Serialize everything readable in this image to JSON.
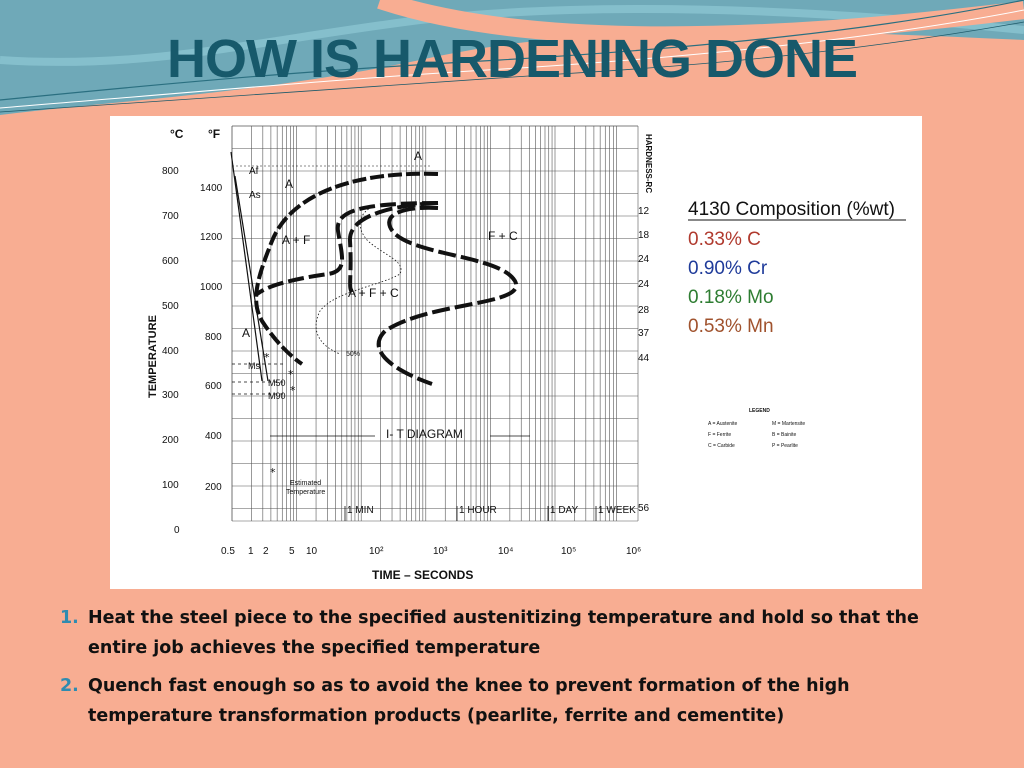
{
  "slide": {
    "title": "HOW IS HARDENING DONE"
  },
  "diagram": {
    "axes": {
      "celsius_unit": "°C",
      "fahrenheit_unit": "°F",
      "hardness_label": "HARDNESS-RC",
      "y_label": "TEMPERATURE",
      "x_label": "TIME – SECONDS",
      "celsius_ticks": [
        "800",
        "700",
        "600",
        "500",
        "400",
        "300",
        "200",
        "100",
        "0"
      ],
      "fahrenheit_ticks": [
        "1400",
        "1200",
        "1000",
        "800",
        "600",
        "400",
        "200"
      ],
      "hardness_ticks": [
        "12",
        "18",
        "24",
        "24",
        "28",
        "37",
        "44"
      ],
      "hardness_top": "56",
      "time_ticks": [
        "0.5",
        "1",
        "2",
        "5",
        "10",
        "10²",
        "10³",
        "10⁴",
        "10⁵",
        "10⁶"
      ]
    },
    "time_markers": [
      "1 MIN",
      "1 HOUR",
      "1 DAY",
      "1 WEEK"
    ],
    "region_labels": {
      "a_top": "A",
      "af": "Af",
      "as": "As",
      "a_curve": "A",
      "a_plus_f": "A + F",
      "f_plus_c": "F + C",
      "a_plus_f_plus_c": "A + F + C",
      "a_left": "A",
      "ms": "Ms",
      "m50": "M50",
      "m90": "M90",
      "fifty_percent": "50%",
      "diagram_name": "I- T  DIAGRAM",
      "estimated_line1": "Estimated",
      "estimated_line2": "Temperature"
    },
    "composition": {
      "title": "4130 Composition (%wt)",
      "elements": [
        {
          "text": "0.33% C",
          "color": "#b03a2e"
        },
        {
          "text": "0.90% Cr",
          "color": "#1f3b9a"
        },
        {
          "text": "0.18% Mo",
          "color": "#2e7d32"
        },
        {
          "text": "0.53% Mn",
          "color": "#a0522d"
        }
      ]
    },
    "legend": {
      "title": "LEGEND",
      "rows": [
        {
          "left": "A = Austenite",
          "right": "M = Martensite"
        },
        {
          "left": "F = Ferrite",
          "right": "B = Bainite"
        },
        {
          "left": "C = Carbide",
          "right": "P = Pearlite"
        }
      ]
    }
  },
  "steps": [
    {
      "number": "1.",
      "text": "Heat the steel piece to the specified austenitizing temperature and hold so that the entire job achieves the specified temperature"
    },
    {
      "number": "2.",
      "text": "Quench fast enough so as to avoid the knee to prevent formation of the high temperature transformation products (pearlite, ferrite and cementite)"
    }
  ]
}
